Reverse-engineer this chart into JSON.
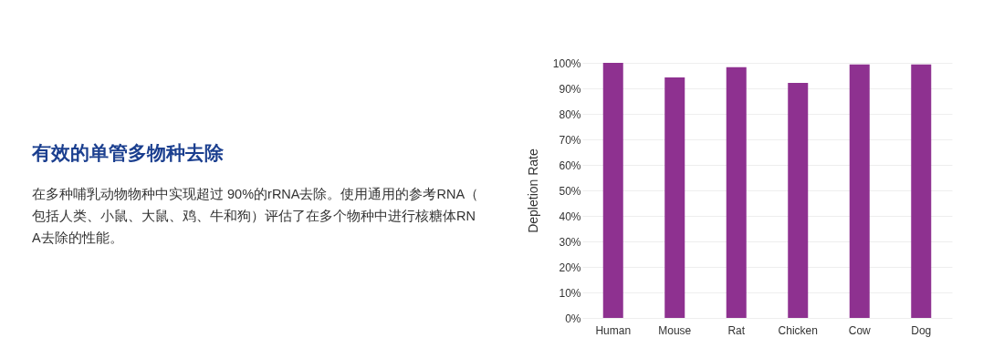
{
  "chart_data": {
    "type": "bar",
    "title": "有效的单管多物种去除",
    "subtitle": "在多种哺乳动物物种中实现超过 90%的rRNA去除。使用通用的参考RNA（包括人类、小鼠、大鼠、鸡、牛和狗）评估了在多个物种中进行核糖体RNA去除的性能。",
    "ylabel": "Depletion Rate",
    "categories": [
      "Human",
      "Mouse",
      "Rat",
      "Chicken",
      "Cow",
      "Dog"
    ],
    "values": [
      100,
      94.3,
      98.3,
      92.1,
      99.4,
      99.4
    ],
    "color": "#8e3190",
    "ylim": [
      0,
      100
    ],
    "yticks": [
      {
        "value": 0,
        "label": "0%"
      },
      {
        "value": 10,
        "label": "10%"
      },
      {
        "value": 20,
        "label": "20%"
      },
      {
        "value": 30,
        "label": "30%"
      },
      {
        "value": 40,
        "label": "40%"
      },
      {
        "value": 50,
        "label": "50%"
      },
      {
        "value": 60,
        "label": "60%"
      },
      {
        "value": 70,
        "label": "70%"
      },
      {
        "value": 80,
        "label": "80%"
      },
      {
        "value": 90,
        "label": "90%"
      },
      {
        "value": 100,
        "label": "100%"
      }
    ],
    "grid": "y"
  }
}
